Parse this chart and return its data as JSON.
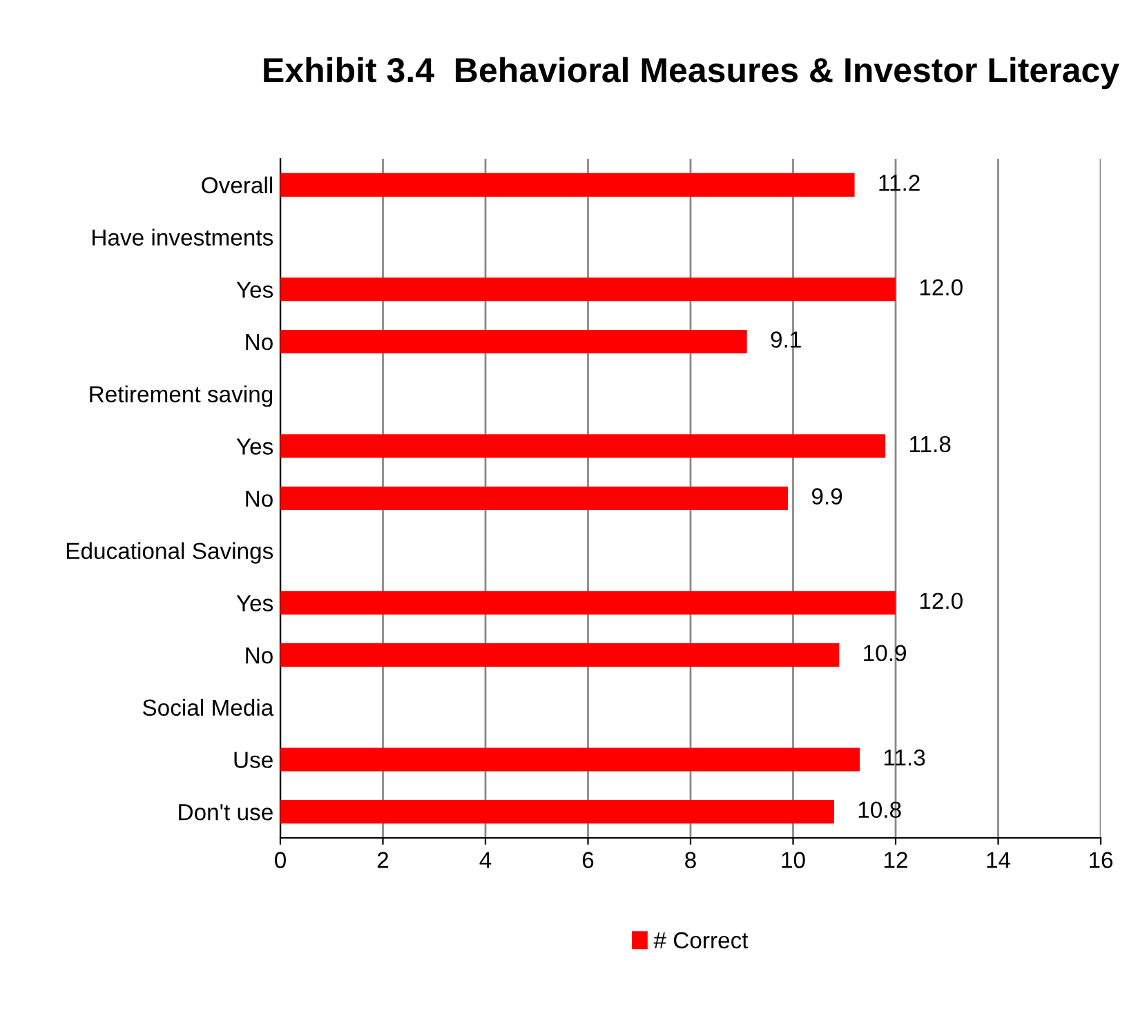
{
  "chart_data": {
    "type": "bar",
    "orientation": "horizontal",
    "title": "Exhibit 3.4  Behavioral Measures & Investor Literacy",
    "categories": [
      "Overall",
      "Have investments",
      "Yes",
      "No",
      "Retirement saving",
      "Yes",
      "No",
      "Educational Savings",
      "Yes",
      "No",
      "Social Media",
      "Use",
      "Don't use"
    ],
    "series": [
      {
        "name": "# Correct",
        "color": "#ff0000",
        "values": [
          11.2,
          null,
          12.0,
          9.1,
          null,
          11.8,
          9.9,
          null,
          12.0,
          10.9,
          null,
          11.3,
          10.8
        ],
        "value_labels": [
          "11.2",
          null,
          "12.0",
          "9.1",
          null,
          "11.8",
          "9.9",
          null,
          "12.0",
          "10.9",
          null,
          "11.3",
          "10.8"
        ]
      }
    ],
    "xlim": [
      0,
      16
    ],
    "xticks": [
      0,
      2,
      4,
      6,
      8,
      10,
      12,
      14,
      16
    ],
    "grid": "x",
    "legend": "bottom"
  }
}
